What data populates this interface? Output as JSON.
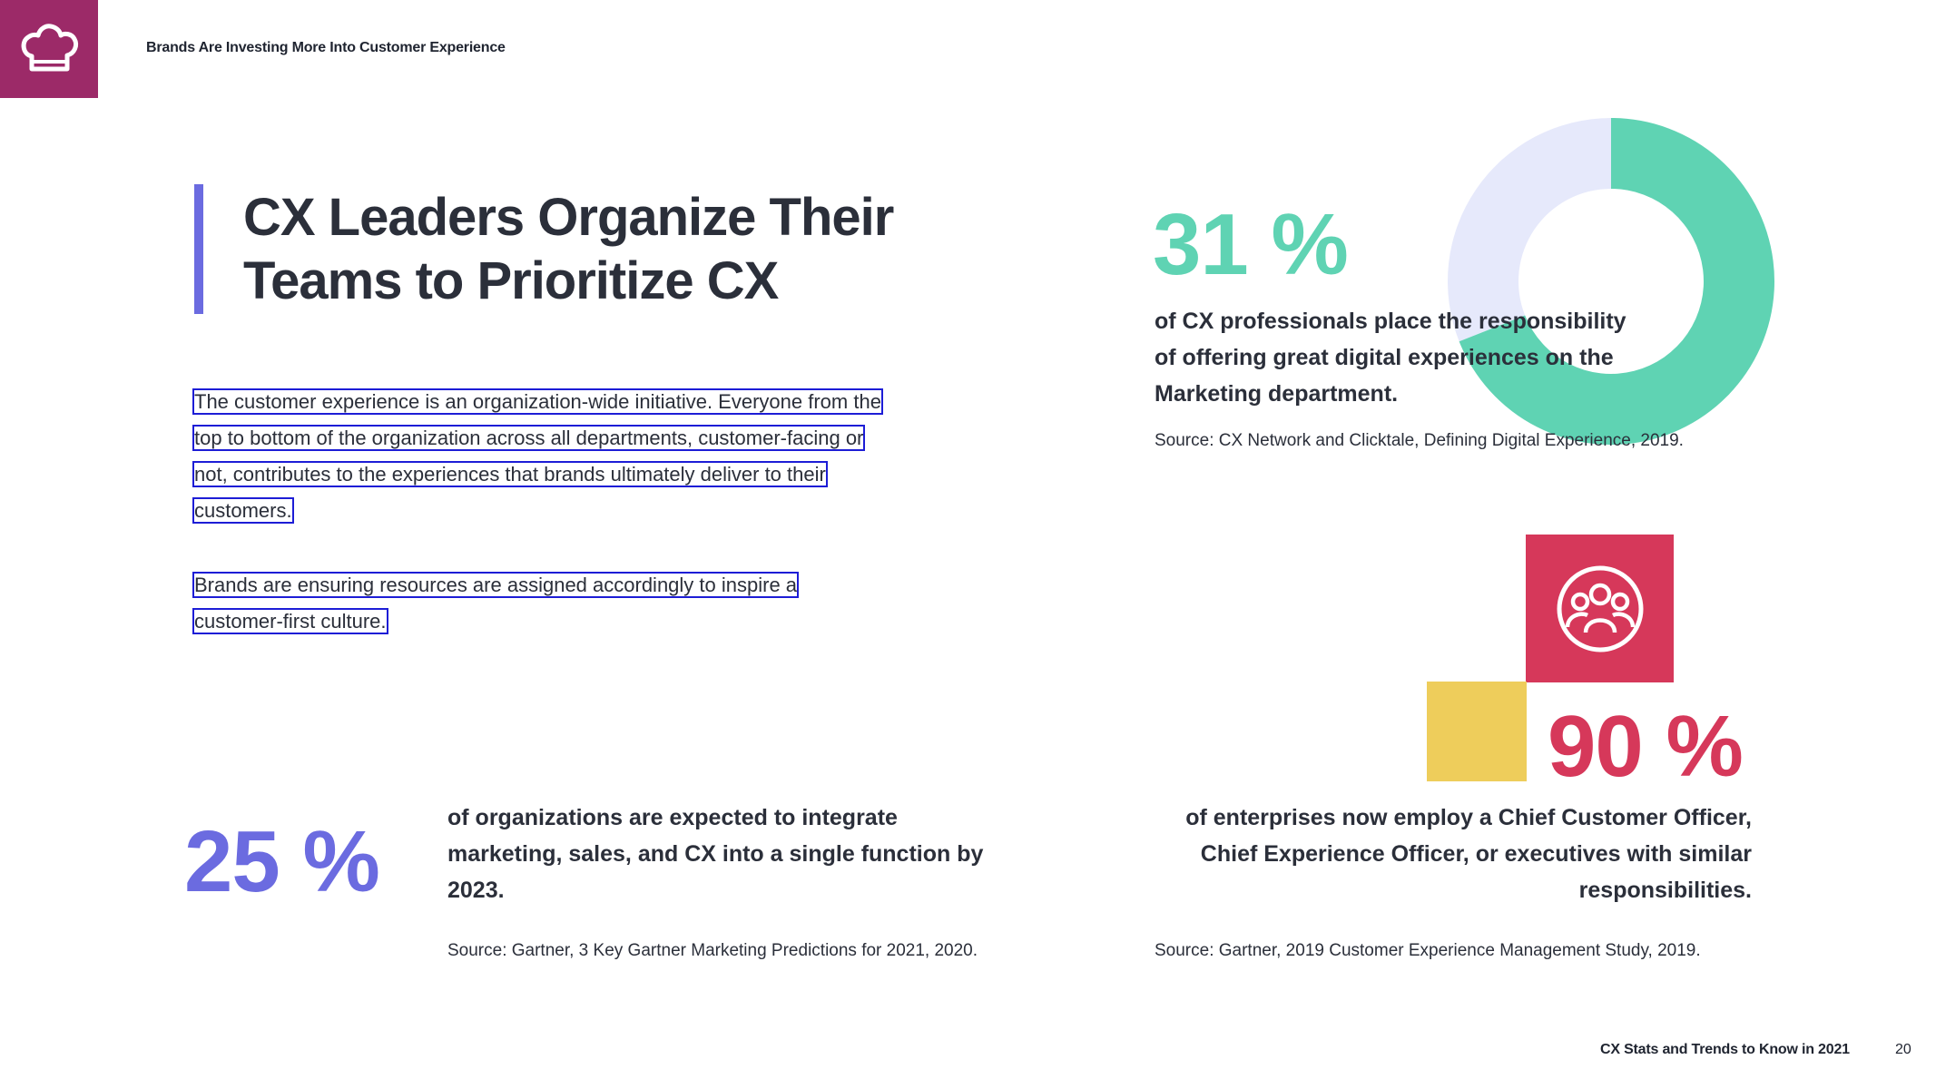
{
  "header": {
    "title": "Brands Are Investing More Into Customer Experience"
  },
  "main": {
    "title_line1": "CX Leaders Organize Their",
    "title_line2": "Teams to Prioritize CX",
    "paragraph1": [
      "The customer experience is an organization-wide initiative. Everyone from the",
      "top to bottom of the organization across all departments, customer-facing or",
      "not, contributes to the experiences that brands ultimately deliver to their",
      "customers."
    ],
    "paragraph2": [
      "Brands are ensuring resources are assigned accordingly to inspire a",
      "customer-first culture."
    ]
  },
  "stats": {
    "marketing": {
      "value": "31 %",
      "description": [
        "of CX professionals place the responsibility",
        "of offering great digital experiences on the",
        "Marketing department."
      ],
      "source": "Source: CX Network and Clicktale, Defining Digital Experience, 2019.",
      "percent": 31
    },
    "integration": {
      "value": "25 %",
      "description": [
        "of organizations are expected to integrate",
        "marketing, sales, and CX into a single function by",
        "2023."
      ],
      "source": "Source: Gartner, 3 Key Gartner Marketing Predictions for 2021, 2020."
    },
    "officers": {
      "value": "90 %",
      "description": [
        "of enterprises now employ a Chief Customer Officer,",
        "Chief Experience Officer, or executives with similar",
        "responsibilities."
      ],
      "source": "Source: Gartner, 2019 Customer Experience Management Study, 2019."
    }
  },
  "colors": {
    "brand": "#9c2a68",
    "accent_purple": "#6b6be0",
    "teal": "#5fd3b3",
    "donut_rest": "#e6e9fb",
    "red": "#d6385a",
    "yellow": "#eecd5b"
  },
  "icons": {
    "logo": "chef-hat-icon",
    "people": "group-people-icon"
  },
  "footer": {
    "title": "CX Stats and Trends to Know in 2021",
    "page": "20"
  }
}
